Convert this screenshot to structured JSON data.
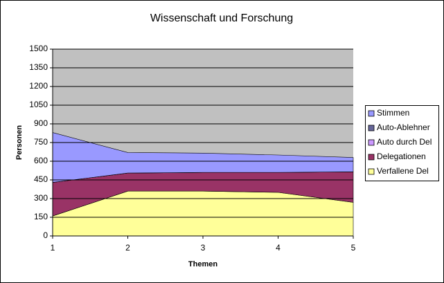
{
  "chart_data": {
    "type": "stacked_area",
    "title": "Wissenschaft und Forschung",
    "x_label": "Themen",
    "y_label": "Personen",
    "x": [
      1,
      2,
      3,
      4,
      5
    ],
    "series": [
      {
        "name": "Verfallene Del",
        "color": "#ffff99",
        "values": [
          160,
          360,
          360,
          350,
          270
        ]
      },
      {
        "name": "Delegationen",
        "color": "#993366",
        "values": [
          270,
          145,
          150,
          160,
          245
        ]
      },
      {
        "name": "Auto durch Del",
        "color": "#cc99ff",
        "values": [
          0,
          0,
          0,
          0,
          0
        ]
      },
      {
        "name": "Auto-Ablehner",
        "color": "#666699",
        "values": [
          0,
          0,
          0,
          0,
          0
        ]
      },
      {
        "name": "Stimmen",
        "color": "#9999ff",
        "values": [
          400,
          165,
          155,
          140,
          115
        ]
      }
    ],
    "xlim": [
      1,
      5
    ],
    "xticks": [
      1,
      2,
      3,
      4,
      5
    ],
    "ylim": [
      0,
      1500
    ],
    "yticks": [
      0,
      150,
      300,
      450,
      600,
      750,
      900,
      1050,
      1200,
      1350,
      1500
    ],
    "grid": true,
    "plot_background": "#c0c0c0",
    "legend": "right"
  }
}
